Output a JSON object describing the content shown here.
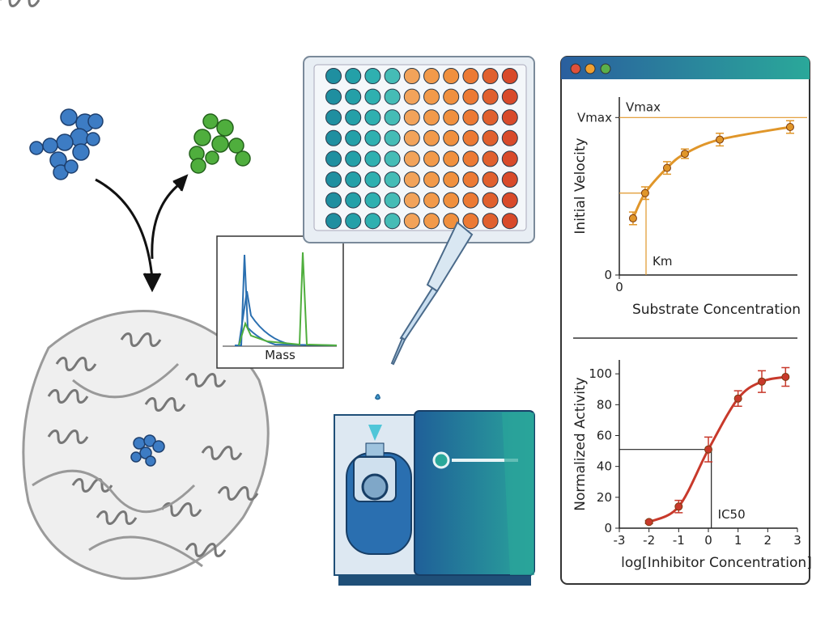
{
  "spectrum": {
    "xlabel": "Mass"
  },
  "chart_data": [
    {
      "type": "line",
      "ylabel": "Initial Velocity",
      "xlabel": "Substrate Concentration",
      "xlim": [
        0,
        10
      ],
      "ylim": [
        0,
        1.13
      ],
      "xticks": [
        0
      ],
      "yticks": [
        0,
        {
          "value": 1,
          "label": "Vmax"
        }
      ],
      "color": "#e0962a",
      "x": [
        0.77,
        1.45,
        2.68,
        3.68,
        5.64,
        9.59
      ],
      "values": [
        0.36,
        0.52,
        0.68,
        0.77,
        0.86,
        0.94
      ],
      "errors": [
        0.04,
        0.04,
        0.04,
        0.03,
        0.04,
        0.04
      ],
      "annotations": [
        {
          "text": "Vmax",
          "y": 1
        },
        {
          "text": "Km",
          "x": 1.5,
          "y": 0.52
        }
      ]
    },
    {
      "type": "line",
      "ylabel": "Normalized Activity",
      "xlabel": "log[Inhibitor Concentration]",
      "xlim": [
        -3,
        3
      ],
      "ylim": [
        0,
        109
      ],
      "xticks": [
        -3,
        -2,
        -1,
        0,
        1,
        2,
        3
      ],
      "yticks": [
        0,
        20,
        40,
        60,
        80,
        100
      ],
      "color": "#c8392b",
      "x": [
        -2,
        -1,
        0,
        1,
        1.8,
        2.6
      ],
      "values": [
        4,
        14,
        51,
        84,
        95,
        98
      ],
      "errors": [
        1,
        4,
        8,
        5,
        7,
        6
      ],
      "annotations": [
        {
          "text": "IC50",
          "x": 0.1,
          "y": 51
        }
      ]
    }
  ]
}
